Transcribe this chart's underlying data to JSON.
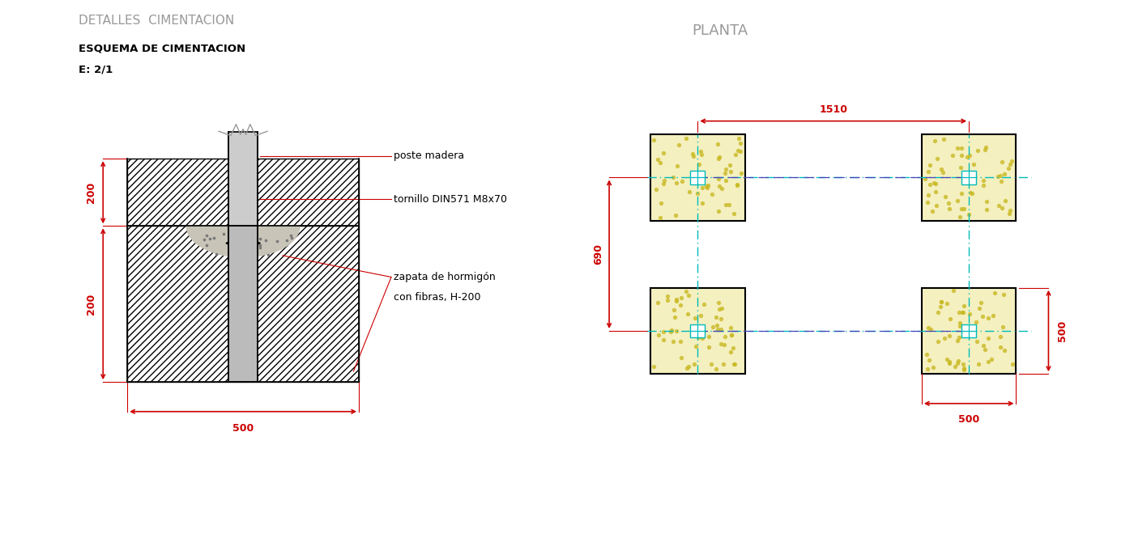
{
  "bg_color": "#ffffff",
  "title_main": "DETALLES  CIMENTACION",
  "title_sub": "ESQUEMA DE CIMENTACION",
  "title_scale": "E: 2/1",
  "label_poste": "poste madera",
  "label_tornillo": "tornillo DIN571 M8x70",
  "label_zapata1": "zapata de hormigón",
  "label_zapata2": "con fibras, H-200",
  "planta_title": "PLANTA",
  "dim_500_bottom": "500",
  "dim_200_top": "200",
  "dim_200_bottom": "200",
  "dim_1510": "1510",
  "dim_690": "690",
  "dim_500_right": "500",
  "dim_500_box": "500",
  "red_color": "#cc0000",
  "black_color": "#000000",
  "gray_color": "#999999",
  "hatch_color": "#555555",
  "concrete_color": "#c8c4b8",
  "yellow_fill": "#f5f0c0",
  "cyan_dash": "#00bbbb",
  "blue_dash": "#4444bb",
  "dim_text_fontsize": 9,
  "label_fontsize": 9,
  "title_fontsize": 11
}
